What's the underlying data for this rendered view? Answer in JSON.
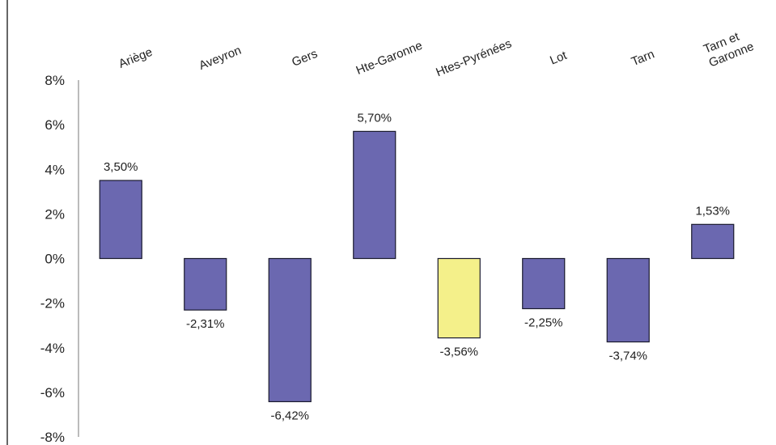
{
  "chart_data": {
    "type": "bar",
    "categories": [
      "Ariège",
      "Aveyron",
      "Gers",
      "Hte-Garonne",
      "Htes-Pyrénées",
      "Lot",
      "Tarn",
      "Tarn et Garonne"
    ],
    "values": [
      3.5,
      -2.31,
      -6.42,
      5.7,
      -3.56,
      -2.25,
      -3.74,
      1.53
    ],
    "data_labels": [
      "3,50%",
      "-2,31%",
      "-6,42%",
      "5,70%",
      "-3,56%",
      "-2,25%",
      "-3,74%",
      "1,53%"
    ],
    "ylim": [
      -8,
      8
    ],
    "yticks": [
      8,
      6,
      4,
      2,
      0,
      -2,
      -4,
      -6,
      -8
    ],
    "ytick_labels": [
      "8%",
      "6%",
      "4%",
      "2%",
      "0%",
      "-2%",
      "-4%",
      "-6%",
      "-8%"
    ],
    "title": "",
    "xlabel": "",
    "ylabel": "",
    "grid": true,
    "category_axis_position": "top",
    "colors": {
      "bar": "#6b68b0",
      "highlight_bar": "#f4f08a",
      "bar_edge": "#1a1a2e",
      "grid_magenta": "#c02cb8",
      "grid_cyan": "#39c7cf",
      "grid_yellow": "#e8e33a",
      "frame": "#333333"
    },
    "highlight_index": 4
  }
}
